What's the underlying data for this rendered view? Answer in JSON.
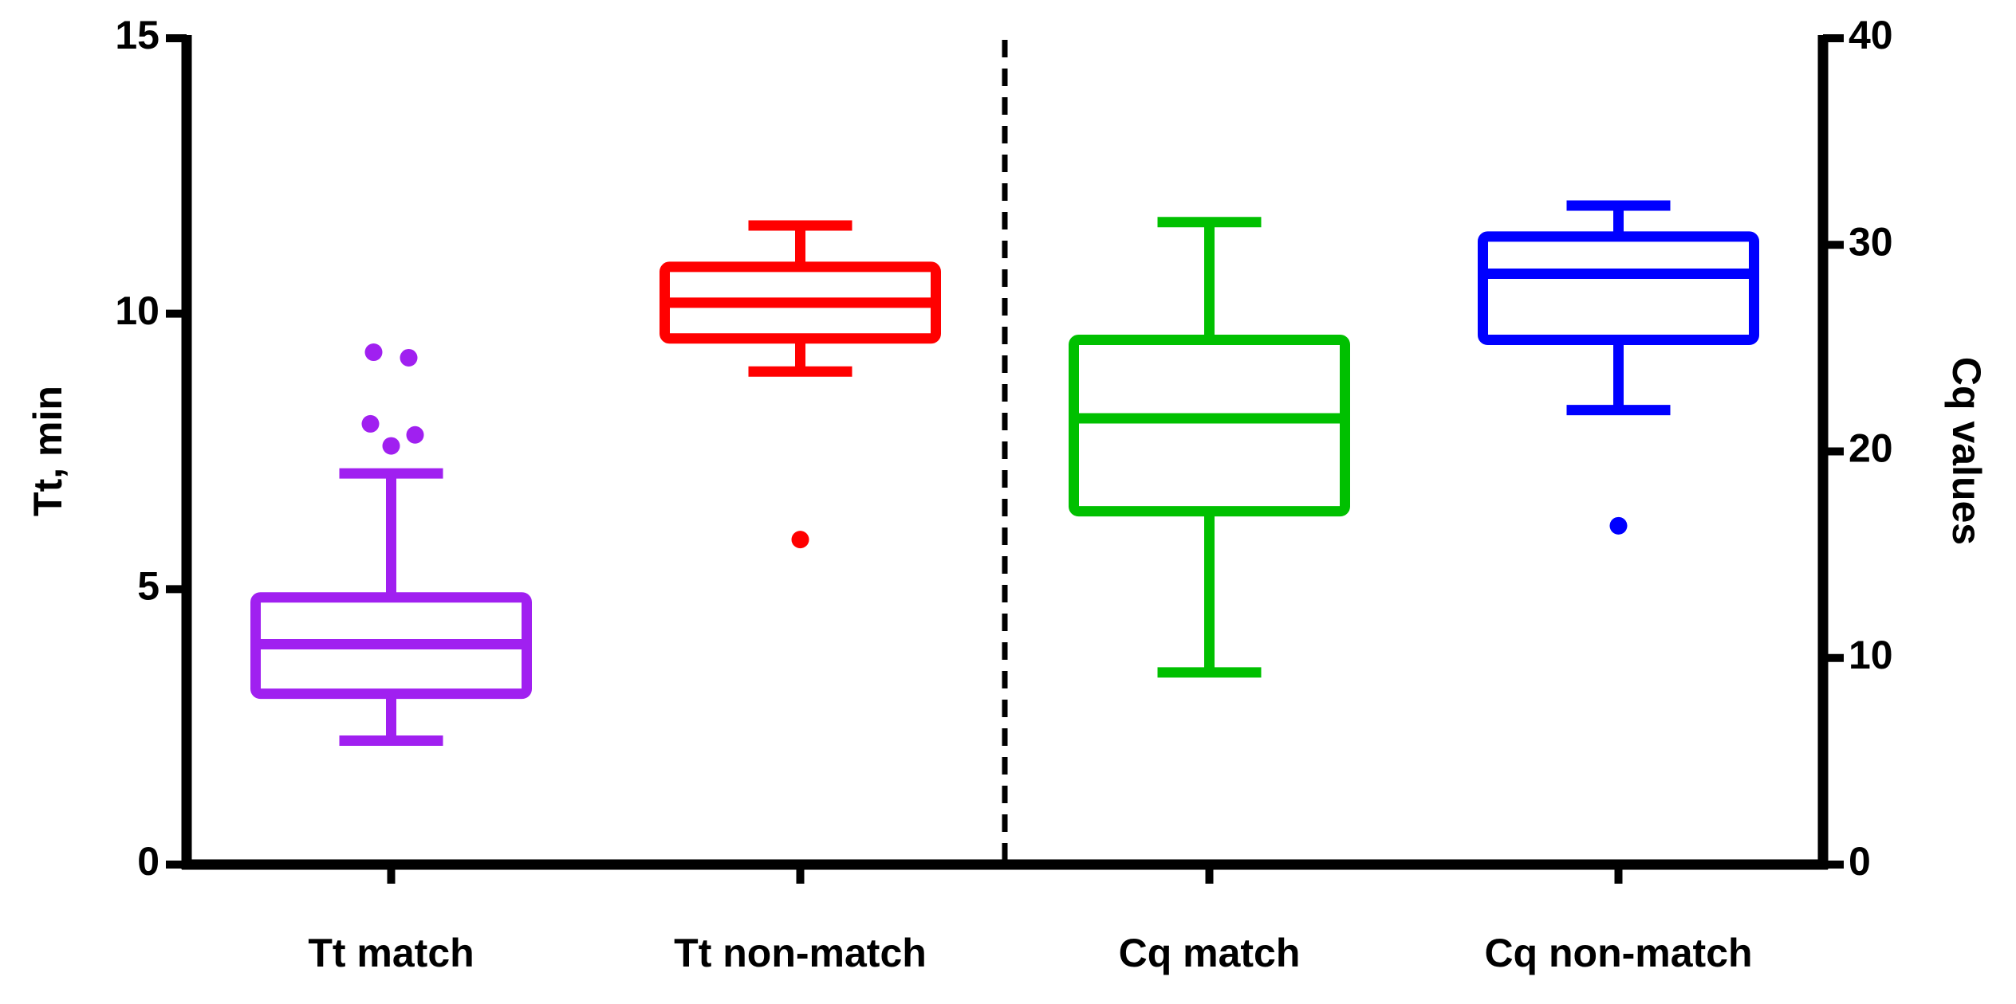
{
  "chart_data": {
    "type": "box",
    "y_label": "Tt, min",
    "y2_label": "Cq values",
    "ylim": [
      0,
      15
    ],
    "yticks": [
      0,
      5,
      10,
      15
    ],
    "y2lim": [
      0,
      40
    ],
    "y2ticks": [
      0,
      10,
      20,
      30,
      40
    ],
    "boxes": [
      {
        "label": "Tt match",
        "color": "#a020f0",
        "axis": "y",
        "whisker_low": 2.25,
        "q1": 3.1,
        "median": 4.0,
        "q3": 4.85,
        "whisker_high": 7.1,
        "outliers": [
          9.3,
          9.2,
          8.0,
          7.6,
          7.8
        ]
      },
      {
        "label": "Tt non-match",
        "color": "#ff0000",
        "axis": "y",
        "whisker_low": 8.95,
        "q1": 9.55,
        "median": 10.2,
        "q3": 10.85,
        "whisker_high": 11.6,
        "outliers": [
          5.9
        ]
      },
      {
        "label": "Cq match",
        "color": "#00c000",
        "axis": "y2",
        "whisker_low": 9.3,
        "q1": 17.1,
        "median": 21.6,
        "q3": 25.4,
        "whisker_high": 31.1,
        "outliers": []
      },
      {
        "label": "Cq non-match",
        "color": "#0000ff",
        "axis": "y2",
        "whisker_low": 22.0,
        "q1": 25.4,
        "median": 28.6,
        "q3": 30.4,
        "whisker_high": 31.9,
        "outliers": [
          16.4
        ]
      }
    ]
  }
}
